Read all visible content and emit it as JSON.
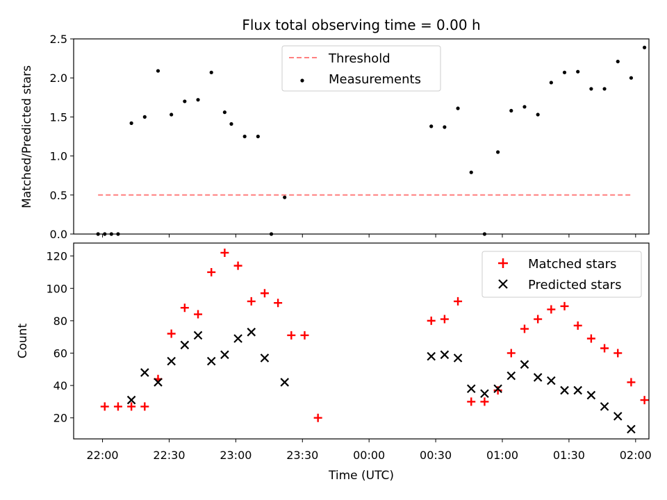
{
  "chart_data": [
    {
      "type": "scatter",
      "title": "Flux total observing time = 0.00 h",
      "xlabel": "",
      "ylabel": "Matched/Predicted stars",
      "ylim": [
        0,
        2.5
      ],
      "yticks": [
        "0.0",
        "0.5",
        "1.0",
        "1.5",
        "2.0",
        "2.5"
      ],
      "xlim": [
        "21:47",
        "02:06"
      ],
      "legend_position": "upper center",
      "series": [
        {
          "name": "Threshold",
          "style": "dashed-line",
          "color": "#ff7f7f",
          "x": [
            "21:58",
            "01:58"
          ],
          "y": [
            0.5,
            0.5
          ]
        },
        {
          "name": "Measurements",
          "style": "dot",
          "color": "#000000",
          "x": [
            "21:58",
            "22:01",
            "22:04",
            "22:07",
            "22:13",
            "22:19",
            "22:25",
            "22:31",
            "22:37",
            "22:43",
            "22:49",
            "22:55",
            "22:58",
            "23:04",
            "23:10",
            "23:16",
            "23:22",
            "00:28",
            "00:34",
            "00:40",
            "00:46",
            "00:52",
            "00:58",
            "01:04",
            "01:10",
            "01:16",
            "01:22",
            "01:28",
            "01:34",
            "01:40",
            "01:46",
            "01:52",
            "01:58",
            "02:04"
          ],
          "y": [
            0.0,
            0.0,
            0.0,
            0.0,
            1.42,
            1.5,
            2.09,
            1.53,
            1.7,
            1.72,
            2.07,
            1.56,
            1.41,
            1.25,
            1.25,
            0.0,
            0.47,
            1.38,
            1.37,
            1.61,
            0.79,
            0.0,
            1.05,
            1.58,
            1.63,
            1.53,
            1.94,
            2.07,
            2.08,
            1.86,
            1.86,
            2.21,
            2.0,
            2.39
          ]
        }
      ]
    },
    {
      "type": "scatter",
      "title": "",
      "xlabel": "Time (UTC)",
      "ylabel": "Count",
      "ylim": [
        7,
        128
      ],
      "yticks": [
        "20",
        "40",
        "60",
        "80",
        "100",
        "120"
      ],
      "xlim": [
        "21:47",
        "02:06"
      ],
      "xticks": [
        "22:00",
        "22:30",
        "23:00",
        "23:30",
        "00:00",
        "00:30",
        "01:00",
        "01:30",
        "02:00"
      ],
      "legend_position": "upper right",
      "series": [
        {
          "name": "Matched stars",
          "marker": "+",
          "color": "#ff0000",
          "x": [
            "22:01",
            "22:07",
            "22:13",
            "22:19",
            "22:25",
            "22:31",
            "22:37",
            "22:43",
            "22:49",
            "22:55",
            "23:01",
            "23:07",
            "23:13",
            "23:19",
            "23:25",
            "23:31",
            "23:37",
            "00:28",
            "00:34",
            "00:40",
            "00:46",
            "00:52",
            "00:58",
            "01:04",
            "01:10",
            "01:16",
            "01:22",
            "01:28",
            "01:34",
            "01:40",
            "01:46",
            "01:52",
            "01:58",
            "02:04"
          ],
          "y": [
            27,
            27,
            27,
            27,
            44,
            72,
            88,
            84,
            110,
            122,
            114,
            92,
            97,
            91,
            71,
            71,
            20,
            80,
            81,
            92,
            30,
            30,
            37,
            60,
            75,
            81,
            87,
            89,
            77,
            69,
            63,
            60,
            42,
            31
          ]
        },
        {
          "name": "Predicted stars",
          "marker": "x",
          "color": "#000000",
          "x": [
            "22:13",
            "22:19",
            "22:25",
            "22:31",
            "22:37",
            "22:43",
            "22:49",
            "22:55",
            "23:01",
            "23:07",
            "23:13",
            "23:22",
            "00:28",
            "00:34",
            "00:40",
            "00:46",
            "00:52",
            "00:58",
            "01:04",
            "01:10",
            "01:16",
            "01:22",
            "01:28",
            "01:34",
            "01:40",
            "01:46",
            "01:52",
            "01:58"
          ],
          "y": [
            31,
            48,
            42,
            55,
            65,
            71,
            55,
            59,
            69,
            73,
            57,
            42,
            58,
            59,
            57,
            38,
            35,
            38,
            46,
            53,
            45,
            43,
            37,
            37,
            34,
            27,
            21,
            13
          ]
        }
      ]
    }
  ]
}
